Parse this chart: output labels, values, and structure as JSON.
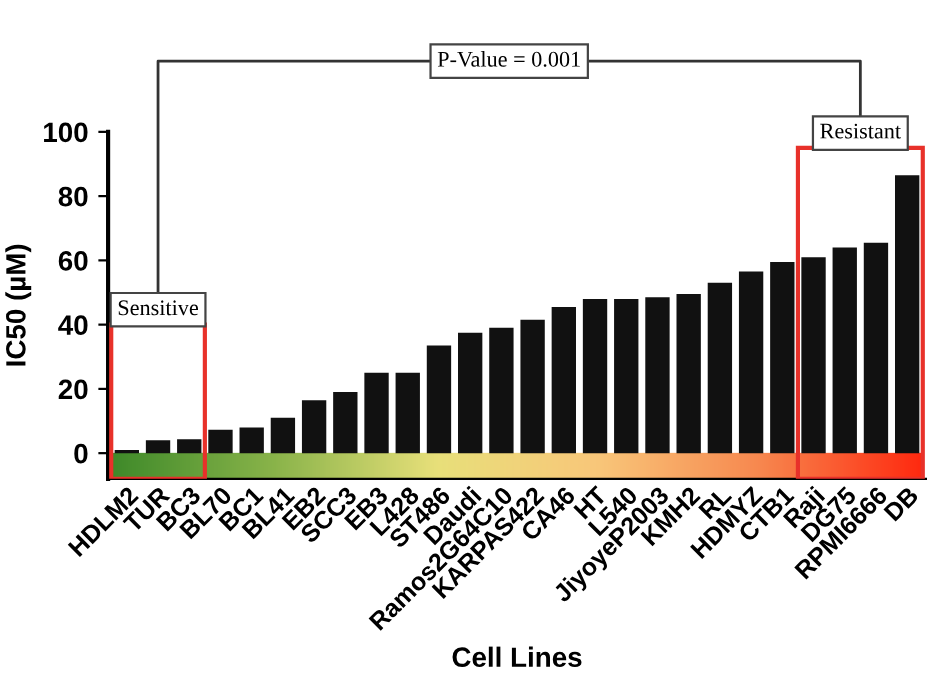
{
  "chart_data": {
    "type": "bar",
    "xlabel": "Cell Lines",
    "ylabel": "IC50 (µM)",
    "categories": [
      "HDLM2",
      "TUR",
      "BC3",
      "BL70",
      "BC1",
      "BL41",
      "EB2",
      "SCC3",
      "EB3",
      "L428",
      "ST486",
      "Daudi",
      "Ramos2G64C10",
      "KARPAS422",
      "CA46",
      "HT",
      "L540",
      "JiyoyeP2003",
      "KMH2",
      "RL",
      "HDMYZ",
      "CTB1",
      "Raji",
      "DG75",
      "RPMI6666",
      "DB"
    ],
    "values": [
      1,
      4,
      4.3,
      7.3,
      8,
      11,
      16.5,
      19,
      25,
      25,
      33.5,
      37.5,
      39,
      41.5,
      45.5,
      48,
      48,
      48.5,
      49.5,
      53,
      56.5,
      59.5,
      61,
      64,
      65.5,
      86.5
    ],
    "color": "#111111",
    "ylim": [
      -8,
      100
    ],
    "yticks": [
      0,
      20,
      40,
      60,
      80,
      100
    ],
    "grid": false,
    "annotations": [
      "Sensitive",
      "Resistant",
      "P-Value = 0.001"
    ]
  }
}
